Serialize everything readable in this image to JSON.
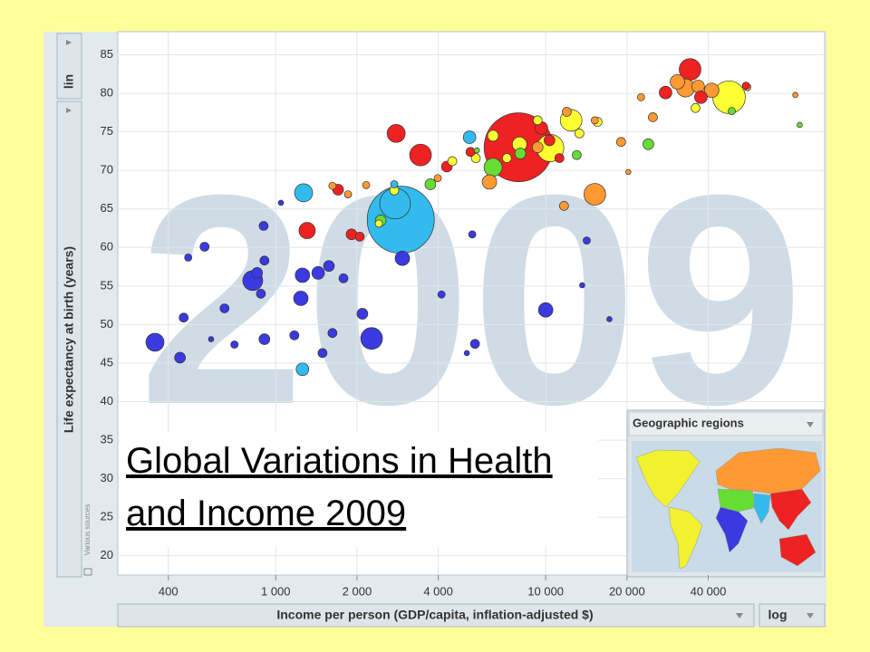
{
  "ui": {
    "lin_toggle": "lin",
    "scale_toggle": "log",
    "region_selector": "Geographic regions",
    "sources": "Various sources",
    "title_link": "Global Variations in Health and Income 2009",
    "year": "2009"
  },
  "chart_data": {
    "type": "bubble",
    "xlabel": "Income per person (GDP/capita, inflation-adjusted $)",
    "ylabel": "Life expectancy at birth (years)",
    "xscale": "log",
    "xlim": [
      260,
      108000
    ],
    "ylim": [
      17.5,
      88
    ],
    "grid": true,
    "xticks": [
      400,
      {
        "value": 1000,
        "label": "1 000"
      },
      {
        "value": 2000,
        "label": "2 000"
      },
      {
        "value": 4000,
        "label": "4 000"
      },
      {
        "value": 10000,
        "label": "10 000"
      },
      {
        "value": 20000,
        "label": "20 000"
      },
      {
        "value": 40000,
        "label": "40 000"
      }
    ],
    "yticks": [
      20,
      25,
      30,
      35,
      40,
      45,
      50,
      55,
      60,
      65,
      70,
      75,
      80,
      85
    ],
    "series": [
      {
        "color": "#3a3ae0",
        "x": [
          357,
          442,
          456,
          545,
          474,
          646,
          703,
          822,
          853,
          881,
          908,
          902,
          908,
          1172,
          1256,
          1239,
          1436,
          1574,
          1782,
          1622,
          1490,
          2094,
          2265,
          2945,
          4112,
          5345,
          5472,
          10000,
          14190,
          13650,
          17220,
          5104,
          1045,
          576
        ],
        "values": [
          47.7,
          45.7,
          50.9,
          60.1,
          58.7,
          52.1,
          47.4,
          55.7,
          56.7,
          54.0,
          58.3,
          62.8,
          48.1,
          48.6,
          56.4,
          53.4,
          56.7,
          57.6,
          56.0,
          48.9,
          46.3,
          51.4,
          48.2,
          58.6,
          53.9,
          61.7,
          47.5,
          51.9,
          60.9,
          55.1,
          50.7,
          46.3,
          65.8,
          48.1
        ],
        "sizes": [
          92,
          33,
          23,
          23,
          15,
          23,
          15,
          112,
          33,
          23,
          23,
          23,
          33,
          23,
          59,
          59,
          45,
          33,
          23,
          23,
          23,
          33,
          133,
          59,
          15,
          15,
          23,
          59,
          15,
          8,
          8,
          8,
          8,
          8
        ]
      },
      {
        "color": "#33bbee",
        "x": [
          2904,
          1268,
          2768,
          1256,
          2748,
          5224
        ],
        "values": [
          63.6,
          67.1,
          65.7,
          44.2,
          68.2,
          74.3
        ],
        "sizes": [
          1266,
          92,
          267,
          45,
          15,
          45
        ]
      },
      {
        "color": "#66dd33",
        "x": [
          2448,
          6384,
          3741,
          13030,
          24000,
          48900,
          87300,
          5560,
          8056
        ],
        "values": [
          63.5,
          70.4,
          68.2,
          72.0,
          73.4,
          77.7,
          75.9,
          72.6,
          72.2
        ],
        "sizes": [
          33,
          92,
          33,
          23,
          33,
          15,
          8,
          8,
          33
        ]
      },
      {
        "color": "#ffff33",
        "x": [
          47760,
          12420,
          10400,
          8000,
          13330,
          7180,
          4508,
          5508,
          2748,
          9336,
          6384,
          35890,
          2410,
          15560
        ],
        "values": [
          79.5,
          76.5,
          72.9,
          73.4,
          74.8,
          71.6,
          71.2,
          71.6,
          67.4,
          76.5,
          74.5,
          78.1,
          63.1,
          76.3
        ],
        "sizes": [
          300,
          133,
          208,
          59,
          23,
          23,
          23,
          23,
          23,
          23,
          33,
          23,
          15,
          23
        ]
      },
      {
        "color": "#ff9933",
        "x": [
          15200,
          32960,
          36700,
          41200,
          30760,
          22550,
          24950,
          19020,
          11970,
          15200,
          6190,
          9336,
          3983,
          1853,
          1622,
          2163,
          11690,
          84100,
          55840,
          20230
        ],
        "values": [
          66.9,
          80.7,
          80.9,
          80.4,
          81.5,
          79.5,
          76.9,
          73.7,
          77.6,
          76.5,
          68.5,
          73.0,
          69.0,
          66.9,
          68.0,
          68.1,
          65.4,
          79.8,
          80.8,
          69.8
        ],
        "sizes": [
          133,
          92,
          45,
          59,
          59,
          15,
          23,
          23,
          23,
          15,
          59,
          33,
          15,
          15,
          15,
          15,
          23,
          8,
          15,
          8
        ]
      },
      {
        "color": "#ee2222",
        "x": [
          7930,
          3438,
          2793,
          34260,
          37580,
          27800,
          4304,
          1307,
          1702,
          2047,
          1909,
          5264,
          11240,
          55200,
          10330,
          9640
        ],
        "values": [
          73.0,
          72.0,
          74.8,
          83.1,
          79.5,
          80.1,
          70.5,
          62.2,
          67.5,
          61.4,
          61.7,
          72.4,
          71.6,
          81.0,
          73.9,
          75.5
        ],
        "sizes": [
          1335,
          133,
          92,
          133,
          45,
          45,
          33,
          75,
          33,
          23,
          33,
          23,
          23,
          15,
          33,
          45
        ]
      }
    ]
  }
}
